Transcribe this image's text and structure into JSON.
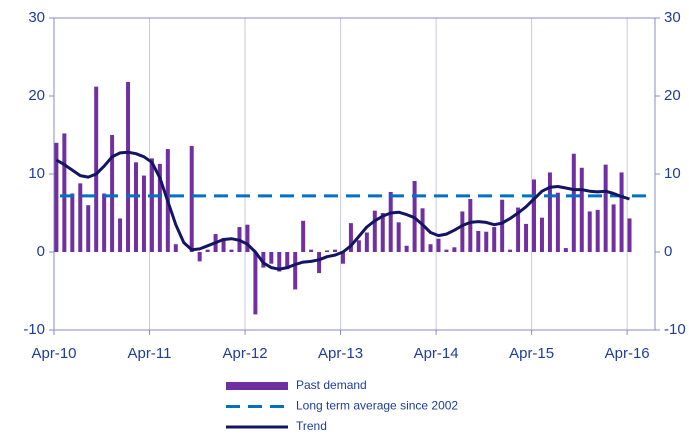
{
  "chart_data": {
    "type": "bar-line",
    "categories": [
      "Apr-10",
      null,
      null,
      null,
      null,
      null,
      null,
      null,
      null,
      null,
      null,
      null,
      "Apr-11",
      null,
      null,
      null,
      null,
      null,
      null,
      null,
      null,
      null,
      null,
      null,
      "Apr-12",
      null,
      null,
      null,
      null,
      null,
      null,
      null,
      null,
      null,
      null,
      null,
      "Apr-13",
      null,
      null,
      null,
      null,
      null,
      null,
      null,
      null,
      null,
      null,
      null,
      "Apr-14",
      null,
      null,
      null,
      null,
      null,
      null,
      null,
      null,
      null,
      null,
      null,
      "Apr-15",
      null,
      null,
      null,
      null,
      null,
      null,
      null,
      null,
      null,
      null,
      null,
      "Apr-16"
    ],
    "series": [
      {
        "name": "Past demand",
        "type": "bar",
        "color": "#7030a0",
        "values": [
          14,
          15.2,
          7.5,
          8.8,
          6,
          21.2,
          7.5,
          15,
          4.3,
          21.8,
          11.5,
          9.8,
          12,
          11.3,
          13.2,
          1,
          0,
          13.6,
          -1.2,
          0.3,
          2.3,
          1.8,
          0.3,
          3.2,
          3.5,
          -8,
          -2,
          -1.5,
          -2.5,
          -2.2,
          -4.8,
          4,
          0.3,
          -2.7,
          0.2,
          0.3,
          -1.5,
          3.7,
          1.5,
          2.5,
          5.3,
          5,
          7.7,
          3.8,
          0.8,
          9.1,
          5.6,
          1,
          1.7,
          0.3,
          0.6,
          5.2,
          6.8,
          2.7,
          2.6,
          3.2,
          6.7,
          0.3,
          5.7,
          3.6,
          9.3,
          4.4,
          10.2,
          7.6,
          0.5,
          12.6,
          10.8,
          5.2,
          5.4,
          11.2,
          6.1,
          10.2,
          4.3
        ]
      },
      {
        "name": "Long term average since 2002",
        "type": "hline",
        "color": "#0070c0",
        "value": 7.2
      },
      {
        "name": "Trend",
        "type": "line",
        "color": "#141464",
        "values": [
          11.8,
          11.2,
          10.5,
          9.8,
          9.6,
          10,
          11,
          12.2,
          12.7,
          12.8,
          12.6,
          12.2,
          11.5,
          9.5,
          6.5,
          3.5,
          1.2,
          0.3,
          0.4,
          0.8,
          1.2,
          1.6,
          1.7,
          1.5,
          1,
          0,
          -1.4,
          -2,
          -2.2,
          -2,
          -1.6,
          -1.3,
          -1.2,
          -1,
          -0.6,
          -0.4,
          0,
          0.8,
          2,
          3.2,
          4,
          4.6,
          5,
          5.1,
          4.8,
          4.4,
          3.5,
          2.5,
          2.1,
          2.3,
          2.8,
          3.4,
          3.8,
          3.9,
          3.8,
          3.5,
          3.7,
          4.3,
          5,
          5.8,
          6.8,
          7.8,
          8.3,
          8.4,
          8.2,
          8,
          8,
          7.8,
          7.7,
          7.8,
          7.5,
          7.1,
          6.8
        ]
      }
    ],
    "ylim": [
      -10,
      30
    ],
    "yticks": [
      -10,
      0,
      10,
      20,
      30
    ],
    "y2lim": [
      -10,
      30
    ],
    "y2ticks": [
      -10,
      0,
      10,
      20,
      30
    ],
    "grid": "x",
    "legend": "bottom"
  }
}
